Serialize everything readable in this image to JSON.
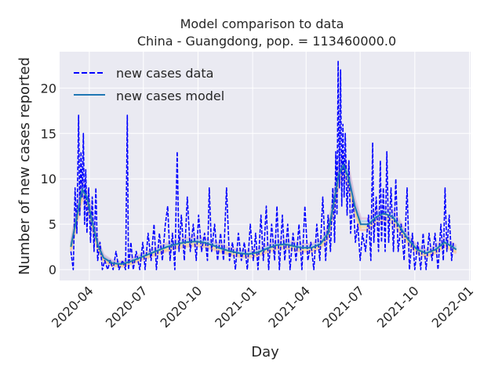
{
  "chart_data": {
    "type": "line",
    "title": "Model comparison to data",
    "subtitle": "China - Guangdong, pop. = 113460000.0",
    "xlabel": "Day",
    "ylabel": "Number of new cases reported",
    "x_ticks": [
      "2020-04",
      "2020-07",
      "2020-10",
      "2021-01",
      "2021-04",
      "2021-07",
      "2021-10",
      "2022-01"
    ],
    "y_ticks": [
      "0",
      "5",
      "10",
      "15",
      "20"
    ],
    "xlim": [
      "2020-02-11",
      "2022-01-03"
    ],
    "ylim": [
      -1.2,
      24
    ],
    "grid": true,
    "legend_position": "top-left",
    "background_color": "#eaeaf2",
    "data_color": "#0000ff",
    "model_color": "#1f77b4",
    "series": [
      {
        "name": "new cases data",
        "style": "dashed",
        "points": [
          [
            "2020-03-01",
            2
          ],
          [
            "2020-03-05",
            0
          ],
          [
            "2020-03-08",
            9
          ],
          [
            "2020-03-11",
            4
          ],
          [
            "2020-03-14",
            17
          ],
          [
            "2020-03-16",
            6
          ],
          [
            "2020-03-18",
            13
          ],
          [
            "2020-03-20",
            8
          ],
          [
            "2020-03-22",
            15
          ],
          [
            "2020-03-24",
            5
          ],
          [
            "2020-03-26",
            11
          ],
          [
            "2020-03-28",
            4
          ],
          [
            "2020-03-31",
            9
          ],
          [
            "2020-04-03",
            3
          ],
          [
            "2020-04-06",
            8
          ],
          [
            "2020-04-09",
            2
          ],
          [
            "2020-04-12",
            9
          ],
          [
            "2020-04-15",
            1
          ],
          [
            "2020-04-19",
            3
          ],
          [
            "2020-04-23",
            0
          ],
          [
            "2020-04-27",
            1
          ],
          [
            "2020-05-02",
            0
          ],
          [
            "2020-05-06",
            1
          ],
          [
            "2020-05-11",
            0
          ],
          [
            "2020-05-16",
            2
          ],
          [
            "2020-05-21",
            0
          ],
          [
            "2020-05-27",
            1
          ],
          [
            "2020-06-01",
            0
          ],
          [
            "2020-06-04",
            17
          ],
          [
            "2020-06-06",
            0
          ],
          [
            "2020-06-10",
            3
          ],
          [
            "2020-06-14",
            0
          ],
          [
            "2020-06-19",
            2
          ],
          [
            "2020-06-25",
            0
          ],
          [
            "2020-06-30",
            3
          ],
          [
            "2020-07-04",
            0
          ],
          [
            "2020-07-09",
            4
          ],
          [
            "2020-07-14",
            1
          ],
          [
            "2020-07-19",
            5
          ],
          [
            "2020-07-23",
            0
          ],
          [
            "2020-07-28",
            4
          ],
          [
            "2020-08-02",
            1
          ],
          [
            "2020-08-07",
            5
          ],
          [
            "2020-08-11",
            7
          ],
          [
            "2020-08-15",
            1
          ],
          [
            "2020-08-19",
            4
          ],
          [
            "2020-08-23",
            0
          ],
          [
            "2020-08-27",
            13
          ],
          [
            "2020-08-30",
            2
          ],
          [
            "2020-09-03",
            6
          ],
          [
            "2020-09-08",
            1
          ],
          [
            "2020-09-13",
            8
          ],
          [
            "2020-09-18",
            2
          ],
          [
            "2020-09-23",
            5
          ],
          [
            "2020-09-28",
            1
          ],
          [
            "2020-10-02",
            6
          ],
          [
            "2020-10-07",
            2
          ],
          [
            "2020-10-12",
            4
          ],
          [
            "2020-10-17",
            1
          ],
          [
            "2020-10-20",
            9
          ],
          [
            "2020-10-24",
            2
          ],
          [
            "2020-10-29",
            5
          ],
          [
            "2020-11-03",
            1
          ],
          [
            "2020-11-08",
            4
          ],
          [
            "2020-11-13",
            1
          ],
          [
            "2020-11-18",
            9
          ],
          [
            "2020-11-23",
            1
          ],
          [
            "2020-11-28",
            3
          ],
          [
            "2020-12-03",
            0
          ],
          [
            "2020-12-08",
            4
          ],
          [
            "2020-12-13",
            1
          ],
          [
            "2020-12-18",
            3
          ],
          [
            "2020-12-23",
            0
          ],
          [
            "2020-12-28",
            5
          ],
          [
            "2021-01-02",
            1
          ],
          [
            "2021-01-06",
            4
          ],
          [
            "2021-01-10",
            0
          ],
          [
            "2021-01-15",
            6
          ],
          [
            "2021-01-19",
            1
          ],
          [
            "2021-01-24",
            7
          ],
          [
            "2021-01-28",
            0
          ],
          [
            "2021-02-02",
            5
          ],
          [
            "2021-02-07",
            1
          ],
          [
            "2021-02-11",
            7
          ],
          [
            "2021-02-15",
            0
          ],
          [
            "2021-02-20",
            6
          ],
          [
            "2021-02-24",
            1
          ],
          [
            "2021-03-01",
            5
          ],
          [
            "2021-03-05",
            0
          ],
          [
            "2021-03-10",
            4
          ],
          [
            "2021-03-15",
            1
          ],
          [
            "2021-03-20",
            5
          ],
          [
            "2021-03-25",
            0
          ],
          [
            "2021-03-30",
            7
          ],
          [
            "2021-04-04",
            1
          ],
          [
            "2021-04-09",
            3
          ],
          [
            "2021-04-14",
            0
          ],
          [
            "2021-04-19",
            5
          ],
          [
            "2021-04-24",
            1
          ],
          [
            "2021-04-29",
            8
          ],
          [
            "2021-05-04",
            1
          ],
          [
            "2021-05-08",
            6
          ],
          [
            "2021-05-12",
            2
          ],
          [
            "2021-05-16",
            9
          ],
          [
            "2021-05-19",
            3
          ],
          [
            "2021-05-21",
            13
          ],
          [
            "2021-05-23",
            6
          ],
          [
            "2021-05-25",
            23
          ],
          [
            "2021-05-27",
            9
          ],
          [
            "2021-05-29",
            22
          ],
          [
            "2021-05-31",
            7
          ],
          [
            "2021-06-02",
            16
          ],
          [
            "2021-06-04",
            8
          ],
          [
            "2021-06-06",
            15
          ],
          [
            "2021-06-09",
            6
          ],
          [
            "2021-06-12",
            12
          ],
          [
            "2021-06-15",
            4
          ],
          [
            "2021-06-19",
            8
          ],
          [
            "2021-06-23",
            3
          ],
          [
            "2021-06-27",
            5
          ],
          [
            "2021-07-01",
            1
          ],
          [
            "2021-07-05",
            4
          ],
          [
            "2021-07-10",
            2
          ],
          [
            "2021-07-15",
            6
          ],
          [
            "2021-07-19",
            1
          ],
          [
            "2021-07-22",
            14
          ],
          [
            "2021-07-24",
            3
          ],
          [
            "2021-07-28",
            8
          ],
          [
            "2021-08-01",
            2
          ],
          [
            "2021-08-04",
            12
          ],
          [
            "2021-08-06",
            3
          ],
          [
            "2021-08-09",
            9
          ],
          [
            "2021-08-12",
            2
          ],
          [
            "2021-08-15",
            13
          ],
          [
            "2021-08-18",
            3
          ],
          [
            "2021-08-22",
            9
          ],
          [
            "2021-08-26",
            2
          ],
          [
            "2021-08-30",
            10
          ],
          [
            "2021-09-03",
            2
          ],
          [
            "2021-09-08",
            5
          ],
          [
            "2021-09-13",
            1
          ],
          [
            "2021-09-18",
            9
          ],
          [
            "2021-09-22",
            0
          ],
          [
            "2021-09-27",
            4
          ],
          [
            "2021-10-01",
            0
          ],
          [
            "2021-10-06",
            3
          ],
          [
            "2021-10-11",
            0
          ],
          [
            "2021-10-15",
            4
          ],
          [
            "2021-10-20",
            0
          ],
          [
            "2021-10-25",
            4
          ],
          [
            "2021-10-30",
            1
          ],
          [
            "2021-11-04",
            4
          ],
          [
            "2021-11-09",
            0
          ],
          [
            "2021-11-14",
            5
          ],
          [
            "2021-11-18",
            1
          ],
          [
            "2021-11-21",
            9
          ],
          [
            "2021-11-24",
            2
          ],
          [
            "2021-11-28",
            6
          ],
          [
            "2021-12-02",
            1
          ],
          [
            "2021-12-05",
            3
          ]
        ]
      },
      {
        "name": "new cases model",
        "style": "solid",
        "points": [
          [
            "2020-03-01",
            2.5
          ],
          [
            "2020-03-10",
            5.5
          ],
          [
            "2020-03-20",
            8.8
          ],
          [
            "2020-03-28",
            8.0
          ],
          [
            "2020-04-05",
            5.5
          ],
          [
            "2020-04-15",
            2.8
          ],
          [
            "2020-04-25",
            1.3
          ],
          [
            "2020-05-10",
            0.7
          ],
          [
            "2020-05-25",
            0.6
          ],
          [
            "2020-06-10",
            0.9
          ],
          [
            "2020-06-25",
            1.3
          ],
          [
            "2020-07-10",
            1.7
          ],
          [
            "2020-07-25",
            2.1
          ],
          [
            "2020-08-10",
            2.5
          ],
          [
            "2020-08-25",
            2.8
          ],
          [
            "2020-09-10",
            3.0
          ],
          [
            "2020-09-25",
            3.1
          ],
          [
            "2020-10-10",
            3.0
          ],
          [
            "2020-10-25",
            2.7
          ],
          [
            "2020-11-10",
            2.3
          ],
          [
            "2020-11-25",
            2.0
          ],
          [
            "2020-12-10",
            1.8
          ],
          [
            "2020-12-25",
            1.7
          ],
          [
            "2021-01-10",
            1.9
          ],
          [
            "2021-01-25",
            2.3
          ],
          [
            "2021-02-10",
            2.7
          ],
          [
            "2021-02-25",
            2.8
          ],
          [
            "2021-03-10",
            2.6
          ],
          [
            "2021-03-25",
            2.4
          ],
          [
            "2021-04-10",
            2.4
          ],
          [
            "2021-04-25",
            2.8
          ],
          [
            "2021-05-08",
            4.0
          ],
          [
            "2021-05-18",
            7.5
          ],
          [
            "2021-05-26",
            10.5
          ],
          [
            "2021-06-03",
            11.5
          ],
          [
            "2021-06-12",
            10.0
          ],
          [
            "2021-06-22",
            7.0
          ],
          [
            "2021-07-02",
            5.0
          ],
          [
            "2021-07-15",
            5.0
          ],
          [
            "2021-07-28",
            5.8
          ],
          [
            "2021-08-10",
            6.2
          ],
          [
            "2021-08-25",
            5.8
          ],
          [
            "2021-09-08",
            4.5
          ],
          [
            "2021-09-20",
            3.3
          ],
          [
            "2021-10-05",
            2.2
          ],
          [
            "2021-10-20",
            1.8
          ],
          [
            "2021-11-05",
            2.2
          ],
          [
            "2021-11-20",
            3.0
          ],
          [
            "2021-12-01",
            2.6
          ],
          [
            "2021-12-10",
            2.2
          ]
        ]
      }
    ]
  }
}
